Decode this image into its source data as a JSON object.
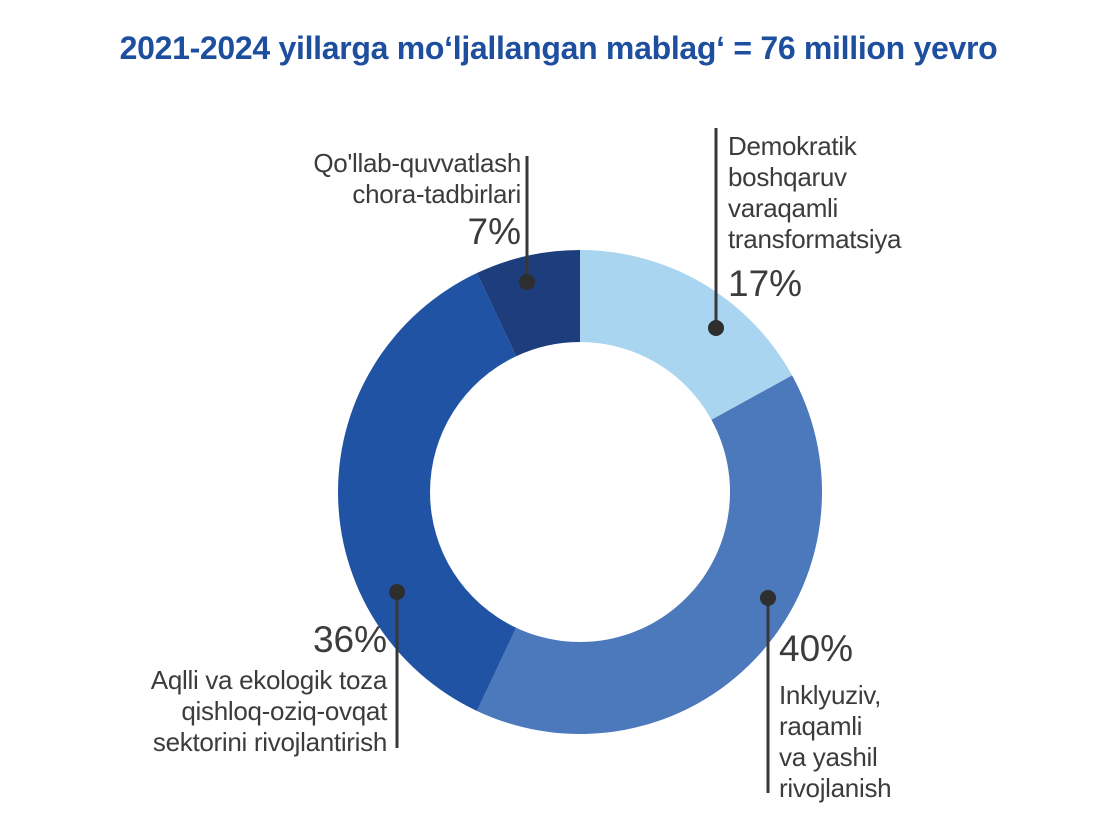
{
  "title": "2021-2024 yillarga moʻljallangan mablagʻ =  76 million yevro",
  "colors": {
    "title_blue": "#1E4F9E",
    "label_text": "#3C3C3C",
    "leader_line": "#383838",
    "segment_light_blue": "#A9D5F0",
    "segment_medium_blue": "#4C78BC",
    "segment_dark_blue": "#2153A5",
    "segment_navy": "#1E3D7D"
  },
  "chart_data": {
    "type": "pie",
    "subtype": "donut",
    "title": "2021-2024 yillarga moʻljallangan mablagʻ = 76 million yevro",
    "total": "76 million yevro",
    "unit": "%",
    "start_angle_deg": 0,
    "direction": "clockwise",
    "inner_radius_ratio": 0.62,
    "legend_position": "callouts",
    "series": [
      {
        "label": "Demokratik boshqaruv varaqamli transformatsiya",
        "value": 17,
        "color": "#A9D5F0"
      },
      {
        "label": "Inklyuziv, raqamli va yashil rivojlanish",
        "value": 40,
        "color": "#4C78BC"
      },
      {
        "label": "Aqlli va ekologik toza qishloq-oziq-ovqat sektorini rivojlantirish",
        "value": 36,
        "color": "#2153A5"
      },
      {
        "label": "Qo'llab-quvvatlash chora-tadbirlari",
        "value": 7,
        "color": "#1E3D7D"
      }
    ]
  },
  "callouts": {
    "democratic": {
      "lines": [
        "Demokratik",
        "boshqaruv",
        "varaqamli",
        "transformatsiya"
      ],
      "pct": "17%"
    },
    "support": {
      "lines": [
        "Qo'llab-quvvatlash",
        "chora-tadbirlari"
      ],
      "pct": "7%"
    },
    "agrifood": {
      "pct": "36%",
      "lines": [
        "Aqlli va ekologik toza",
        "qishloq-oziq-ovqat",
        "sektorini rivojlantirish"
      ]
    },
    "inclusive": {
      "pct": "40%",
      "lines": [
        "Inklyuziv,",
        "raqamli",
        "va yashil",
        "rivojlanish"
      ]
    }
  }
}
